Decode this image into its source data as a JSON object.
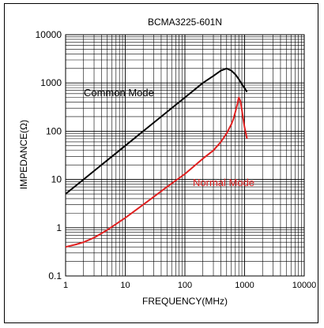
{
  "chart_data": {
    "type": "line",
    "title": "BCMA3225-601N",
    "xlabel": "FREQUENCY(MHz)",
    "ylabel": "IMPEDANCE(Ω)",
    "xscale": "log",
    "yscale": "log",
    "xlim": [
      1,
      10000
    ],
    "ylim": [
      0.1,
      10000
    ],
    "grid": true,
    "x_ticks": [
      "1",
      "10",
      "100",
      "1000",
      "10000"
    ],
    "y_ticks": [
      "0.1",
      "1",
      "10",
      "100",
      "1000",
      "10000"
    ],
    "series": [
      {
        "name": "Common Mode",
        "color": "#000000",
        "x": [
          1,
          2,
          5,
          10,
          20,
          50,
          100,
          200,
          300,
          400,
          500,
          600,
          700,
          800,
          900,
          1000,
          1100
        ],
        "y": [
          5,
          10,
          25,
          50,
          100,
          250,
          500,
          1000,
          1400,
          1800,
          2000,
          1800,
          1500,
          1200,
          950,
          780,
          650
        ]
      },
      {
        "name": "Normal Mode",
        "color": "#e02020",
        "x": [
          1,
          1.5,
          2,
          3,
          5,
          10,
          20,
          50,
          100,
          200,
          300,
          400,
          500,
          600,
          650,
          700,
          750,
          800,
          850,
          900,
          950,
          1000,
          1050,
          1100
        ],
        "y": [
          0.4,
          0.45,
          0.5,
          0.62,
          0.9,
          1.6,
          3,
          7,
          13,
          27,
          40,
          60,
          90,
          140,
          180,
          250,
          350,
          500,
          420,
          280,
          180,
          120,
          90,
          70
        ]
      }
    ]
  }
}
